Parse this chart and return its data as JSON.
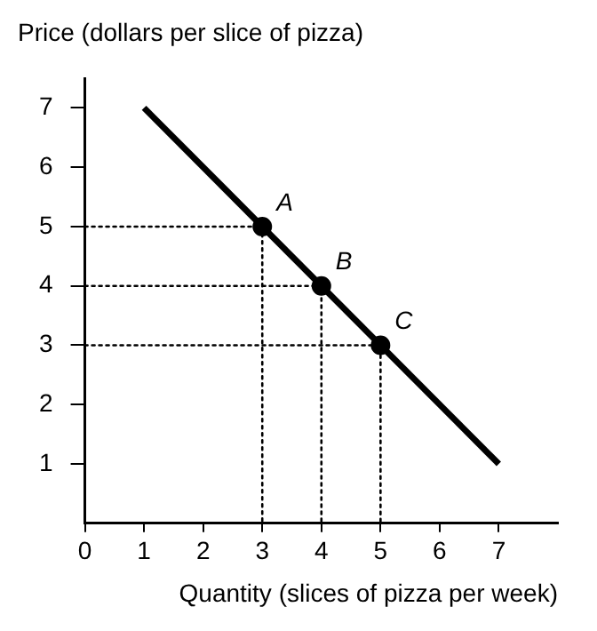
{
  "chart_data": {
    "type": "line",
    "ylabel": "Price (dollars per slice of pizza)",
    "xlabel": "Quantity (slices of pizza per week)",
    "xlim": [
      0,
      8
    ],
    "ylim": [
      0,
      7.5
    ],
    "xticks": [
      0,
      1,
      2,
      3,
      4,
      5,
      6,
      7
    ],
    "yticks": [
      1,
      2,
      3,
      4,
      5,
      6,
      7
    ],
    "grid": false,
    "legend": false,
    "series": [
      {
        "color": "#000000",
        "x": [
          1,
          7
        ],
        "values": [
          7,
          1
        ],
        "line_style": "solid",
        "marker": "none"
      },
      {
        "type": "line",
        "color": "#000000",
        "x": [
          0,
          3,
          3
        ],
        "values": [
          5,
          5,
          0
        ],
        "line_style": "dotted",
        "marker": "none"
      },
      {
        "type": "line",
        "color": "#000000",
        "x": [
          0,
          4,
          4
        ],
        "values": [
          4,
          4,
          0
        ],
        "line_style": "dotted",
        "marker": "none"
      },
      {
        "type": "line",
        "color": "#000000",
        "x": [
          0,
          5,
          5
        ],
        "values": [
          3,
          3,
          0
        ],
        "line_style": "dotted",
        "marker": "none"
      },
      {
        "type": "scatter",
        "color": "#000000",
        "x": [
          3,
          4,
          5
        ],
        "values": [
          5,
          4,
          3
        ],
        "marker": "circle"
      }
    ],
    "annotations": [
      {
        "text": "A",
        "x": 3,
        "y": 5
      },
      {
        "text": "B",
        "x": 4,
        "y": 4
      },
      {
        "text": "C",
        "x": 5,
        "y": 3
      }
    ]
  }
}
